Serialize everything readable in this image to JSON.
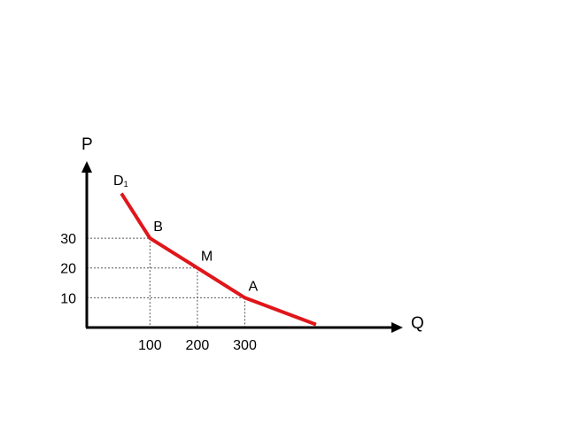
{
  "chart_data": {
    "type": "line",
    "xlabel": "Q",
    "ylabel": "P",
    "x_ticks": [
      "100",
      "200",
      "300"
    ],
    "y_ticks": [
      "10",
      "20",
      "30"
    ],
    "xlim": [
      -33,
      633
    ],
    "ylim": [
      0,
      55
    ],
    "grid": false,
    "curve_color": "#e0161b",
    "axis_color": "#000000",
    "curve_label": {
      "base": "D",
      "subscript": "1"
    },
    "series": [
      {
        "name": "D1",
        "points": [
          {
            "x": 40,
            "y": 45
          },
          {
            "x": 100,
            "y": 30
          },
          {
            "x": 200,
            "y": 20
          },
          {
            "x": 300,
            "y": 10
          },
          {
            "x": 450,
            "y": 1
          }
        ]
      }
    ],
    "annotations": [
      {
        "label": "B",
        "x": 100,
        "y": 30
      },
      {
        "label": "M",
        "x": 200,
        "y": 20
      },
      {
        "label": "A",
        "x": 300,
        "y": 10
      }
    ]
  }
}
